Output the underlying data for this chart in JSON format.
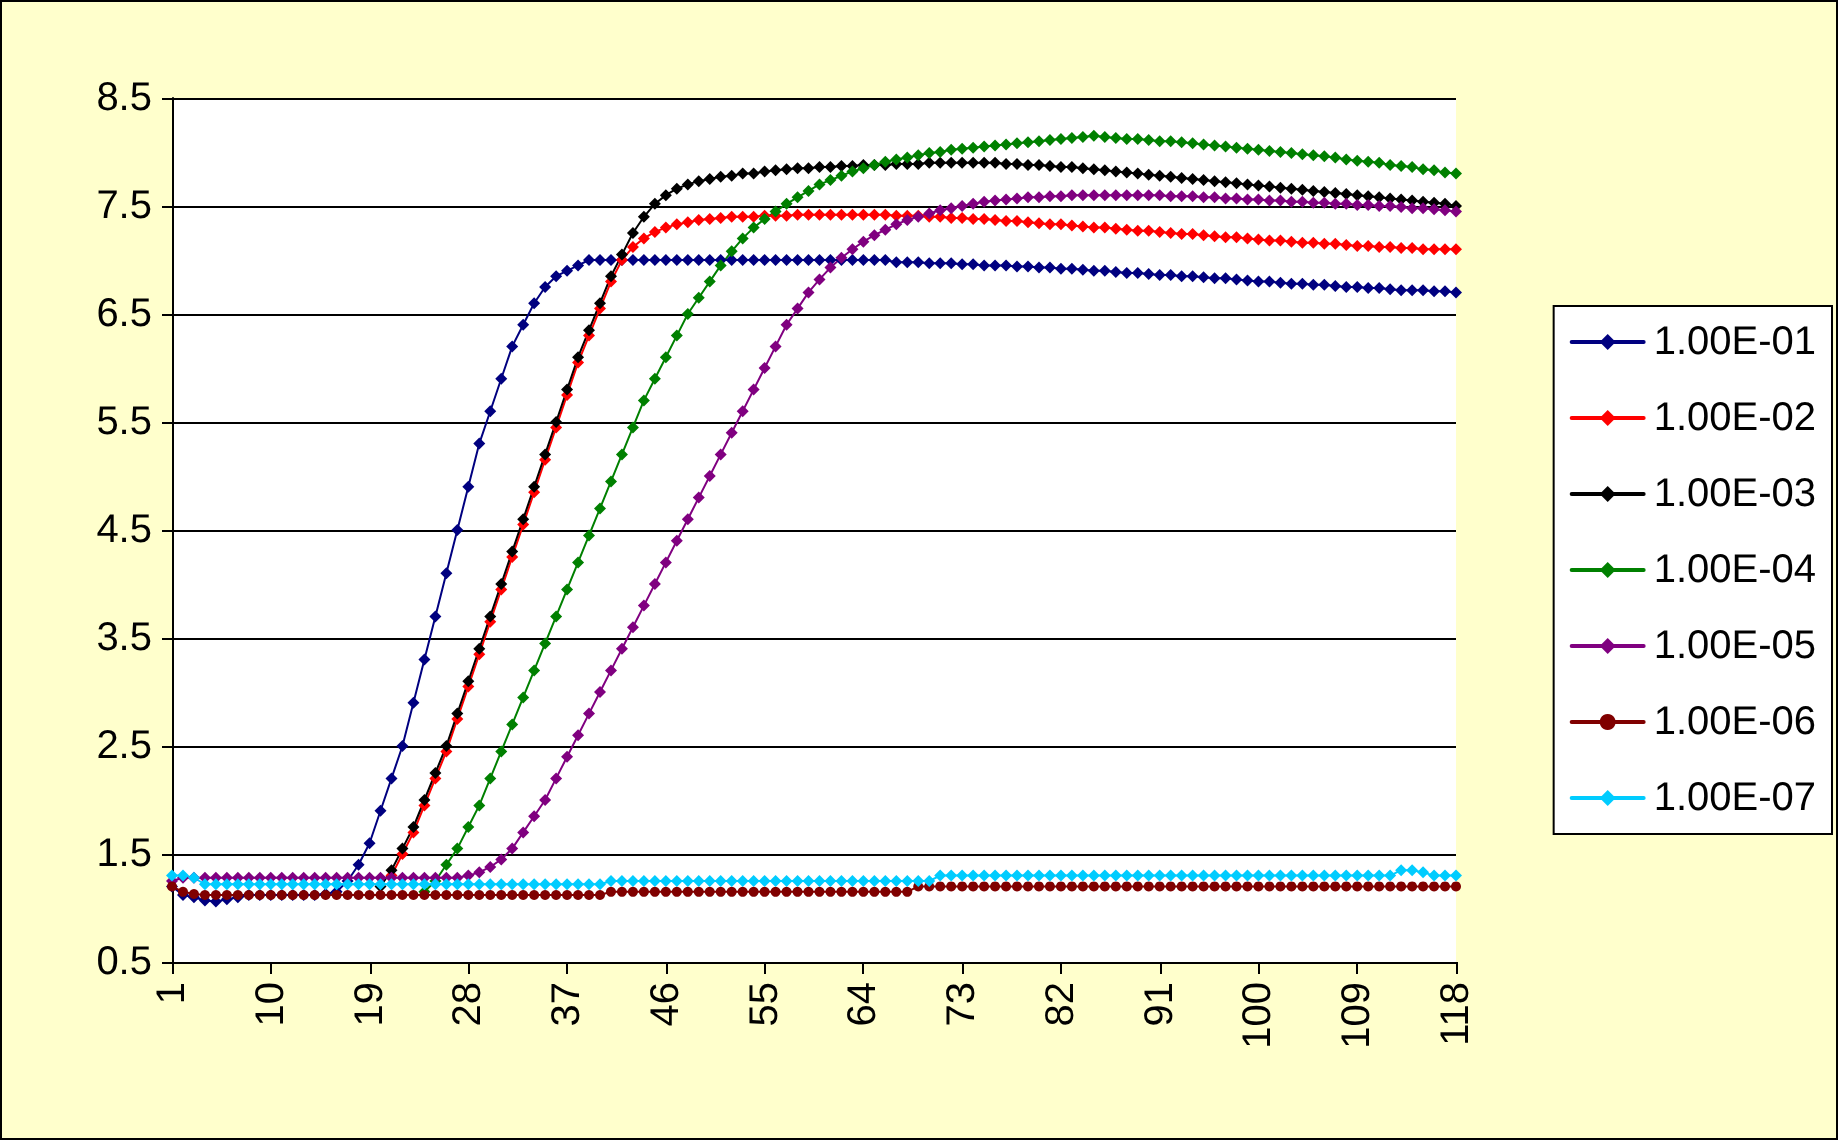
{
  "chart_data": {
    "type": "line",
    "marker": "diamond",
    "line_style": "solid",
    "grid": "y",
    "legend": "right",
    "categories": [
      "1",
      null,
      null,
      null,
      null,
      null,
      null,
      null,
      null,
      "10",
      null,
      null,
      null,
      null,
      null,
      null,
      null,
      null,
      "19",
      null,
      null,
      null,
      null,
      null,
      null,
      null,
      null,
      "28",
      null,
      null,
      null,
      null,
      null,
      null,
      null,
      null,
      "37",
      null,
      null,
      null,
      null,
      null,
      null,
      null,
      null,
      "46",
      null,
      null,
      null,
      null,
      null,
      null,
      null,
      null,
      "55",
      null,
      null,
      null,
      null,
      null,
      null,
      null,
      null,
      "64",
      null,
      null,
      null,
      null,
      null,
      null,
      null,
      null,
      "73",
      null,
      null,
      null,
      null,
      null,
      null,
      null,
      null,
      "82",
      null,
      null,
      null,
      null,
      null,
      null,
      null,
      null,
      "91",
      null,
      null,
      null,
      null,
      null,
      null,
      null,
      null,
      "100",
      null,
      null,
      null,
      null,
      null,
      null,
      null,
      null,
      "109",
      null,
      null,
      null,
      null,
      null,
      null,
      null,
      null,
      "118"
    ],
    "ylim": [
      0.5,
      8.5
    ],
    "yticks": [
      0.5,
      1.5,
      2.5,
      3.5,
      4.5,
      5.5,
      6.5,
      7.5,
      8.5
    ],
    "series": [
      {
        "name": "1.00E-01",
        "color": "#000080",
        "values": [
          1.2,
          1.12,
          1.1,
          1.07,
          1.06,
          1.08,
          1.1,
          1.12,
          1.12,
          1.12,
          1.12,
          1.12,
          1.12,
          1.12,
          1.13,
          1.15,
          1.25,
          1.4,
          1.6,
          1.9,
          2.2,
          2.5,
          2.9,
          3.3,
          3.7,
          4.1,
          4.5,
          4.9,
          5.3,
          5.6,
          5.9,
          6.2,
          6.4,
          6.6,
          6.75,
          6.85,
          6.9,
          6.95,
          7.0,
          7.0,
          7.0,
          7.0,
          7.0,
          7.0,
          7.0,
          7.0,
          7.0,
          7.0,
          7.0,
          7.0,
          7.0,
          7.0,
          7.0,
          7.0,
          7.0,
          7.0,
          7.0,
          7.0,
          7.0,
          7.0,
          7.0,
          7.0,
          7.0,
          7.0,
          7.0,
          7.0,
          6.98,
          6.98,
          6.98,
          6.97,
          6.97,
          6.97,
          6.96,
          6.96,
          6.95,
          6.95,
          6.95,
          6.94,
          6.94,
          6.93,
          6.93,
          6.92,
          6.92,
          6.91,
          6.9,
          6.9,
          6.89,
          6.88,
          6.88,
          6.87,
          6.86,
          6.86,
          6.85,
          6.85,
          6.84,
          6.83,
          6.83,
          6.82,
          6.81,
          6.8,
          6.8,
          6.79,
          6.78,
          6.78,
          6.77,
          6.77,
          6.76,
          6.75,
          6.75,
          6.74,
          6.74,
          6.73,
          6.72,
          6.72,
          6.72,
          6.71,
          6.71,
          6.7
        ]
      },
      {
        "name": "1.00E-02",
        "color": "#ff0000",
        "values": [
          null,
          null,
          null,
          null,
          null,
          null,
          null,
          null,
          null,
          null,
          null,
          null,
          null,
          null,
          null,
          null,
          null,
          null,
          null,
          null,
          1.3,
          1.5,
          1.7,
          1.95,
          2.2,
          2.45,
          2.75,
          3.05,
          3.35,
          3.65,
          3.95,
          4.25,
          4.55,
          4.85,
          5.15,
          5.45,
          5.75,
          6.05,
          6.3,
          6.55,
          6.8,
          7.0,
          7.12,
          7.2,
          7.26,
          7.3,
          7.33,
          7.35,
          7.37,
          7.38,
          7.39,
          7.4,
          7.4,
          7.4,
          7.41,
          7.41,
          7.41,
          7.42,
          7.42,
          7.42,
          7.42,
          7.42,
          7.42,
          7.42,
          7.42,
          7.42,
          7.41,
          7.41,
          7.41,
          7.4,
          7.4,
          7.39,
          7.39,
          7.38,
          7.38,
          7.37,
          7.36,
          7.36,
          7.35,
          7.34,
          7.33,
          7.33,
          7.32,
          7.31,
          7.3,
          7.3,
          7.29,
          7.28,
          7.27,
          7.27,
          7.26,
          7.25,
          7.24,
          7.24,
          7.23,
          7.22,
          7.21,
          7.21,
          7.2,
          7.19,
          7.18,
          7.18,
          7.17,
          7.16,
          7.16,
          7.15,
          7.15,
          7.14,
          7.13,
          7.13,
          7.12,
          7.12,
          7.11,
          7.11,
          7.1,
          7.1,
          7.1,
          7.1
        ]
      },
      {
        "name": "1.00E-03",
        "color": "#000000",
        "values": [
          null,
          null,
          null,
          null,
          null,
          null,
          null,
          null,
          null,
          null,
          null,
          null,
          null,
          null,
          null,
          null,
          null,
          null,
          null,
          1.2,
          1.35,
          1.55,
          1.75,
          2.0,
          2.25,
          2.5,
          2.8,
          3.1,
          3.4,
          3.7,
          4.0,
          4.3,
          4.6,
          4.9,
          5.2,
          5.5,
          5.8,
          6.1,
          6.35,
          6.6,
          6.85,
          7.05,
          7.25,
          7.4,
          7.52,
          7.6,
          7.66,
          7.7,
          7.73,
          7.75,
          7.77,
          7.78,
          7.8,
          7.8,
          7.82,
          7.83,
          7.84,
          7.85,
          7.85,
          7.86,
          7.86,
          7.87,
          7.87,
          7.88,
          7.88,
          7.88,
          7.89,
          7.89,
          7.89,
          7.9,
          7.9,
          7.9,
          7.9,
          7.9,
          7.9,
          7.9,
          7.89,
          7.89,
          7.88,
          7.88,
          7.87,
          7.86,
          7.86,
          7.85,
          7.84,
          7.83,
          7.82,
          7.81,
          7.8,
          7.79,
          7.78,
          7.77,
          7.76,
          7.75,
          7.74,
          7.73,
          7.72,
          7.71,
          7.7,
          7.69,
          7.68,
          7.67,
          7.66,
          7.65,
          7.64,
          7.63,
          7.62,
          7.61,
          7.6,
          7.59,
          7.58,
          7.57,
          7.56,
          7.55,
          7.54,
          7.53,
          7.52,
          7.5
        ]
      },
      {
        "name": "1.00E-04",
        "color": "#008000",
        "values": [
          null,
          null,
          null,
          null,
          null,
          null,
          null,
          null,
          null,
          null,
          null,
          null,
          null,
          null,
          null,
          null,
          null,
          null,
          null,
          null,
          null,
          null,
          null,
          1.15,
          1.25,
          1.4,
          1.55,
          1.75,
          1.95,
          2.2,
          2.45,
          2.7,
          2.95,
          3.2,
          3.45,
          3.7,
          3.95,
          4.2,
          4.45,
          4.7,
          4.95,
          5.2,
          5.45,
          5.7,
          5.9,
          6.1,
          6.3,
          6.5,
          6.65,
          6.8,
          6.95,
          7.08,
          7.2,
          7.3,
          7.38,
          7.45,
          7.52,
          7.58,
          7.64,
          7.7,
          7.74,
          7.78,
          7.82,
          7.85,
          7.88,
          7.91,
          7.93,
          7.95,
          7.97,
          7.99,
          8.0,
          8.02,
          8.03,
          8.04,
          8.05,
          8.06,
          8.07,
          8.08,
          8.09,
          8.1,
          8.11,
          8.12,
          8.13,
          8.14,
          8.15,
          8.14,
          8.13,
          8.12,
          8.12,
          8.11,
          8.1,
          8.1,
          8.09,
          8.08,
          8.07,
          8.06,
          8.05,
          8.04,
          8.03,
          8.02,
          8.01,
          8.0,
          7.99,
          7.98,
          7.97,
          7.96,
          7.95,
          7.93,
          7.92,
          7.91,
          7.9,
          7.88,
          7.87,
          7.86,
          7.84,
          7.83,
          7.81,
          7.8
        ]
      },
      {
        "name": "1.00E-05",
        "color": "#800080",
        "values": [
          1.25,
          1.28,
          1.28,
          1.28,
          1.28,
          1.28,
          1.28,
          1.28,
          1.28,
          1.28,
          1.28,
          1.28,
          1.28,
          1.28,
          1.28,
          1.28,
          1.28,
          1.28,
          1.28,
          1.28,
          1.28,
          1.28,
          1.28,
          1.28,
          1.28,
          1.28,
          1.28,
          1.3,
          1.33,
          1.38,
          1.45,
          1.55,
          1.7,
          1.85,
          2.0,
          2.2,
          2.4,
          2.6,
          2.8,
          3.0,
          3.2,
          3.4,
          3.6,
          3.8,
          4.0,
          4.2,
          4.4,
          4.6,
          4.8,
          5.0,
          5.2,
          5.4,
          5.6,
          5.8,
          6.0,
          6.2,
          6.4,
          6.55,
          6.7,
          6.82,
          6.93,
          7.02,
          7.1,
          7.17,
          7.23,
          7.28,
          7.33,
          7.37,
          7.4,
          7.43,
          7.46,
          7.48,
          7.5,
          7.52,
          7.54,
          7.55,
          7.56,
          7.57,
          7.58,
          7.58,
          7.59,
          7.59,
          7.6,
          7.6,
          7.6,
          7.6,
          7.6,
          7.6,
          7.6,
          7.6,
          7.6,
          7.59,
          7.59,
          7.59,
          7.58,
          7.58,
          7.57,
          7.57,
          7.56,
          7.56,
          7.55,
          7.55,
          7.54,
          7.54,
          7.53,
          7.53,
          7.52,
          7.52,
          7.51,
          7.51,
          7.5,
          7.5,
          7.49,
          7.48,
          7.48,
          7.47,
          7.46,
          7.45
        ]
      },
      {
        "name": "1.00E-06",
        "color": "#800000",
        "marker": "circle",
        "values": [
          1.2,
          1.15,
          1.13,
          1.12,
          1.12,
          1.12,
          1.12,
          1.12,
          1.12,
          1.12,
          1.12,
          1.12,
          1.12,
          1.12,
          1.12,
          1.12,
          1.12,
          1.12,
          1.12,
          1.12,
          1.12,
          1.12,
          1.12,
          1.12,
          1.12,
          1.12,
          1.12,
          1.12,
          1.12,
          1.12,
          1.12,
          1.12,
          1.12,
          1.12,
          1.12,
          1.12,
          1.12,
          1.12,
          1.12,
          1.12,
          1.15,
          1.15,
          1.15,
          1.15,
          1.15,
          1.15,
          1.15,
          1.15,
          1.15,
          1.15,
          1.15,
          1.15,
          1.15,
          1.15,
          1.15,
          1.15,
          1.15,
          1.15,
          1.15,
          1.15,
          1.15,
          1.15,
          1.15,
          1.15,
          1.15,
          1.15,
          1.15,
          1.15,
          1.2,
          1.2,
          1.2,
          1.2,
          1.2,
          1.2,
          1.2,
          1.2,
          1.2,
          1.2,
          1.2,
          1.2,
          1.2,
          1.2,
          1.2,
          1.2,
          1.2,
          1.2,
          1.2,
          1.2,
          1.2,
          1.2,
          1.2,
          1.2,
          1.2,
          1.2,
          1.2,
          1.2,
          1.2,
          1.2,
          1.2,
          1.2,
          1.2,
          1.2,
          1.2,
          1.2,
          1.2,
          1.2,
          1.2,
          1.2,
          1.2,
          1.2,
          1.2,
          1.2,
          1.2,
          1.2,
          1.2,
          1.2,
          1.2,
          1.2
        ]
      },
      {
        "name": "1.00E-07",
        "color": "#00ccff",
        "values": [
          1.3,
          1.3,
          1.28,
          1.22,
          1.22,
          1.22,
          1.22,
          1.22,
          1.22,
          1.22,
          1.22,
          1.22,
          1.22,
          1.22,
          1.22,
          1.22,
          1.22,
          1.22,
          1.22,
          1.22,
          1.22,
          1.22,
          1.22,
          1.22,
          1.22,
          1.22,
          1.22,
          1.22,
          1.22,
          1.22,
          1.22,
          1.22,
          1.22,
          1.22,
          1.22,
          1.22,
          1.22,
          1.22,
          1.22,
          1.22,
          1.25,
          1.25,
          1.25,
          1.25,
          1.25,
          1.25,
          1.25,
          1.25,
          1.25,
          1.25,
          1.25,
          1.25,
          1.25,
          1.25,
          1.25,
          1.25,
          1.25,
          1.25,
          1.25,
          1.25,
          1.25,
          1.25,
          1.25,
          1.25,
          1.25,
          1.25,
          1.25,
          1.25,
          1.25,
          1.25,
          1.3,
          1.3,
          1.3,
          1.3,
          1.3,
          1.3,
          1.3,
          1.3,
          1.3,
          1.3,
          1.3,
          1.3,
          1.3,
          1.3,
          1.3,
          1.3,
          1.3,
          1.3,
          1.3,
          1.3,
          1.3,
          1.3,
          1.3,
          1.3,
          1.3,
          1.3,
          1.3,
          1.3,
          1.3,
          1.3,
          1.3,
          1.3,
          1.3,
          1.3,
          1.3,
          1.3,
          1.3,
          1.3,
          1.3,
          1.3,
          1.3,
          1.3,
          1.35,
          1.35,
          1.33,
          1.3,
          1.3,
          1.3
        ]
      }
    ]
  }
}
